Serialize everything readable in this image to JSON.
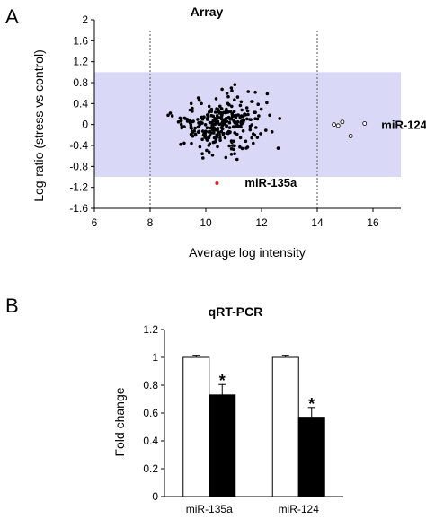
{
  "panels": {
    "a_letter": "A",
    "b_letter": "B"
  },
  "chart_data": [
    {
      "type": "scatter",
      "title": "Array",
      "xlabel": "Average log intensity",
      "ylabel": "Log-ratio (stress vs control)",
      "xlim": [
        6,
        17
      ],
      "ylim": [
        -1.6,
        2
      ],
      "x_ticks": [
        6,
        8,
        10,
        12,
        14,
        16
      ],
      "x_tick_labels": [
        "6",
        "8",
        "10",
        "12",
        "14",
        "16"
      ],
      "y_ticks": [
        2,
        1.6,
        1.2,
        0.8,
        0.4,
        0,
        -0.4,
        -0.8,
        -1.2,
        -1.6
      ],
      "y_tick_labels": [
        "2",
        "1.6",
        "1.2",
        "0.8",
        "0.4",
        "0",
        "-0.4",
        "-0.8",
        "-1.2",
        "-1.6"
      ],
      "shaded_band": {
        "y_min": -1.0,
        "y_max": 1.0,
        "color": "#d9d9f7"
      },
      "vertical_dashed_lines": [
        8,
        14
      ],
      "colors": {
        "points": "#000000",
        "highlight": "#e02020",
        "open": "#ffffff"
      },
      "annotations": [
        {
          "text": "miR-124",
          "x": 16.3,
          "y": 0.0
        },
        {
          "text": "miR-135a",
          "x": 11.4,
          "y": -1.1
        }
      ],
      "highlight_point": {
        "name": "miR-135a",
        "x": 10.4,
        "y": -1.12
      },
      "open_points": [
        {
          "x": 14.6,
          "y": 0.0
        },
        {
          "x": 14.75,
          "y": -0.02
        },
        {
          "x": 14.9,
          "y": 0.05
        },
        {
          "x": 15.2,
          "y": -0.22
        },
        {
          "x": 15.7,
          "y": 0.02
        }
      ]
    },
    {
      "type": "bar",
      "title": "qRT-PCR",
      "ylabel": "Fold change",
      "ylim": [
        0,
        1.2
      ],
      "y_ticks": [
        0,
        0.2,
        0.4,
        0.6,
        0.8,
        1,
        1.2
      ],
      "y_tick_labels": [
        "0",
        "0.2",
        "0.4",
        "0.6",
        "0.8",
        "1",
        "1.2"
      ],
      "categories": [
        "miR-135a",
        "miR-124"
      ],
      "series": [
        {
          "fill": "#ffffff",
          "values": [
            1.0,
            1.0
          ],
          "errors": [
            0.015,
            0.015
          ]
        },
        {
          "fill": "#000000",
          "values": [
            0.73,
            0.57
          ],
          "errors": [
            0.075,
            0.07
          ]
        }
      ],
      "significance": [
        {
          "category": "miR-135a",
          "series": 1,
          "mark": "*"
        },
        {
          "category": "miR-124",
          "series": 1,
          "mark": "*"
        }
      ]
    }
  ]
}
